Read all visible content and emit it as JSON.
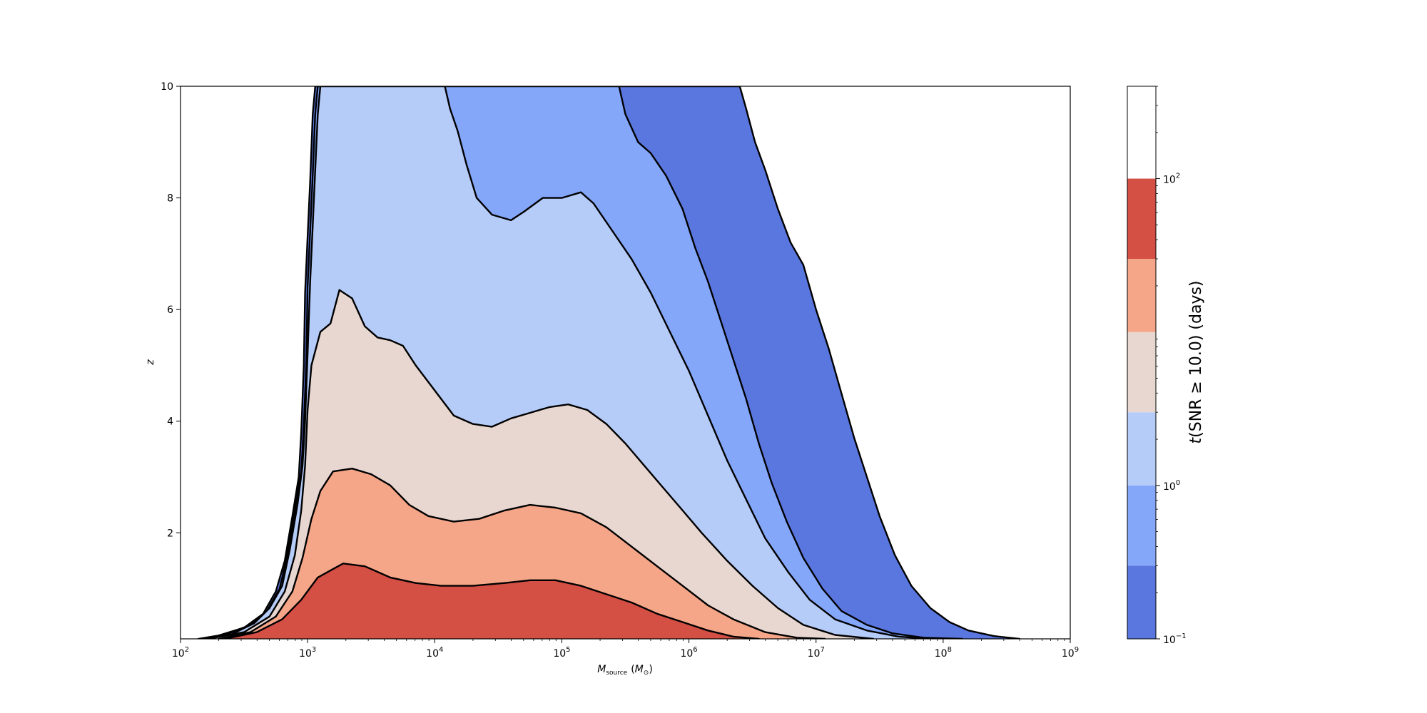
{
  "chart_data": {
    "type": "contourf",
    "xlabel_main": "M",
    "xlabel_sub": "source",
    "xlabel_unit_open": "(",
    "xlabel_unit": "M",
    "xlabel_unit_sub": "⊙",
    "xlabel_unit_close": ")",
    "ylabel": "z",
    "x_scale": "log",
    "xlim": [
      100,
      1000000000
    ],
    "ylim": [
      0.1,
      10
    ],
    "x_ticks": [
      {
        "value": 100,
        "base": "10",
        "exp": "2"
      },
      {
        "value": 1000,
        "base": "10",
        "exp": "3"
      },
      {
        "value": 10000,
        "base": "10",
        "exp": "4"
      },
      {
        "value": 100000,
        "base": "10",
        "exp": "5"
      },
      {
        "value": 1000000,
        "base": "10",
        "exp": "6"
      },
      {
        "value": 10000000,
        "base": "10",
        "exp": "7"
      },
      {
        "value": 100000000,
        "base": "10",
        "exp": "8"
      },
      {
        "value": 1000000000,
        "base": "10",
        "exp": "9"
      }
    ],
    "y_ticks": [
      {
        "value": 2,
        "label": "2"
      },
      {
        "value": 4,
        "label": "4"
      },
      {
        "value": 6,
        "label": "6"
      },
      {
        "value": 8,
        "label": "8"
      },
      {
        "value": 10,
        "label": "10"
      }
    ],
    "colorbar": {
      "label": "t(SNR ≥ 10.0)  (days)",
      "scale": "log",
      "range": [
        0.1,
        400
      ],
      "levels": [
        0.1,
        0.3,
        1,
        3,
        10,
        30,
        100,
        400
      ],
      "colors": [
        "#5a77e0",
        "#84a7fa",
        "#b5cbf8",
        "#e8d7d0",
        "#f5a688",
        "#d44f44"
      ],
      "tick_labels": [
        {
          "value": 0.1,
          "base": "10",
          "exp": "−1"
        },
        {
          "value": 1,
          "base": "10",
          "exp": "0"
        },
        {
          "value": 100,
          "base": "10",
          "exp": "2"
        }
      ]
    },
    "contour_regions": [
      {
        "name": "t ≥ 0.1 days",
        "color": "#5a77e0",
        "boundary_log10M_z": [
          [
            2.14,
            0.1
          ],
          [
            2.3,
            0.16
          ],
          [
            2.5,
            0.3
          ],
          [
            2.65,
            0.55
          ],
          [
            2.75,
            0.95
          ],
          [
            2.82,
            1.5
          ],
          [
            2.88,
            2.3
          ],
          [
            2.93,
            3.0
          ],
          [
            2.95,
            3.8
          ],
          [
            2.97,
            5.0
          ],
          [
            2.98,
            6.3
          ],
          [
            3.0,
            7.3
          ],
          [
            3.02,
            8.3
          ],
          [
            3.04,
            9.5
          ],
          [
            3.06,
            10
          ],
          [
            6.4,
            10
          ],
          [
            6.45,
            9.6
          ],
          [
            6.52,
            9.0
          ],
          [
            6.6,
            8.5
          ],
          [
            6.7,
            7.8
          ],
          [
            6.8,
            7.2
          ],
          [
            6.9,
            6.8
          ],
          [
            7.0,
            6.0
          ],
          [
            7.1,
            5.3
          ],
          [
            7.2,
            4.5
          ],
          [
            7.3,
            3.7
          ],
          [
            7.4,
            3.0
          ],
          [
            7.5,
            2.3
          ],
          [
            7.62,
            1.6
          ],
          [
            7.75,
            1.05
          ],
          [
            7.9,
            0.65
          ],
          [
            8.05,
            0.4
          ],
          [
            8.2,
            0.25
          ],
          [
            8.4,
            0.15
          ],
          [
            8.6,
            0.1
          ]
        ]
      },
      {
        "name": "t ≥ 0.3 days",
        "color": "#84a7fa",
        "boundary_log10M_z": [
          [
            2.16,
            0.1
          ],
          [
            2.35,
            0.17
          ],
          [
            2.55,
            0.35
          ],
          [
            2.68,
            0.6
          ],
          [
            2.78,
            1.0
          ],
          [
            2.84,
            1.6
          ],
          [
            2.9,
            2.4
          ],
          [
            2.95,
            3.1
          ],
          [
            2.97,
            3.9
          ],
          [
            2.99,
            5.1
          ],
          [
            3.0,
            6.4
          ],
          [
            3.02,
            7.4
          ],
          [
            3.04,
            8.4
          ],
          [
            3.06,
            9.5
          ],
          [
            3.08,
            10
          ],
          [
            5.45,
            10
          ],
          [
            5.5,
            9.5
          ],
          [
            5.6,
            9.0
          ],
          [
            5.7,
            8.8
          ],
          [
            5.82,
            8.4
          ],
          [
            5.95,
            7.8
          ],
          [
            6.05,
            7.1
          ],
          [
            6.15,
            6.5
          ],
          [
            6.25,
            5.8
          ],
          [
            6.35,
            5.1
          ],
          [
            6.45,
            4.4
          ],
          [
            6.55,
            3.6
          ],
          [
            6.65,
            2.9
          ],
          [
            6.77,
            2.2
          ],
          [
            6.9,
            1.55
          ],
          [
            7.05,
            1.0
          ],
          [
            7.2,
            0.6
          ],
          [
            7.4,
            0.35
          ],
          [
            7.6,
            0.2
          ],
          [
            7.85,
            0.12
          ],
          [
            8.15,
            0.1
          ]
        ]
      },
      {
        "name": "t ≥ 1 days",
        "color": "#b5cbf8",
        "boundary_log10M_z": [
          [
            2.18,
            0.1
          ],
          [
            2.4,
            0.18
          ],
          [
            2.58,
            0.38
          ],
          [
            2.7,
            0.65
          ],
          [
            2.8,
            1.05
          ],
          [
            2.86,
            1.7
          ],
          [
            2.92,
            2.5
          ],
          [
            2.96,
            3.2
          ],
          [
            2.98,
            4.0
          ],
          [
            3.0,
            5.2
          ],
          [
            3.02,
            6.5
          ],
          [
            3.04,
            7.5
          ],
          [
            3.06,
            8.5
          ],
          [
            3.08,
            9.5
          ],
          [
            3.1,
            10
          ],
          [
            4.08,
            10
          ],
          [
            4.12,
            9.6
          ],
          [
            4.18,
            9.2
          ],
          [
            4.25,
            8.6
          ],
          [
            4.33,
            8.0
          ],
          [
            4.45,
            7.7
          ],
          [
            4.6,
            7.6
          ],
          [
            4.7,
            7.75
          ],
          [
            4.85,
            8.0
          ],
          [
            5.0,
            8.0
          ],
          [
            5.15,
            8.1
          ],
          [
            5.25,
            7.9
          ],
          [
            5.4,
            7.4
          ],
          [
            5.55,
            6.9
          ],
          [
            5.7,
            6.3
          ],
          [
            5.85,
            5.6
          ],
          [
            6.0,
            4.9
          ],
          [
            6.15,
            4.1
          ],
          [
            6.3,
            3.3
          ],
          [
            6.45,
            2.6
          ],
          [
            6.6,
            1.9
          ],
          [
            6.78,
            1.3
          ],
          [
            6.95,
            0.8
          ],
          [
            7.15,
            0.45
          ],
          [
            7.4,
            0.25
          ],
          [
            7.65,
            0.14
          ],
          [
            7.9,
            0.1
          ]
        ]
      },
      {
        "name": "t ≥ 3 days",
        "color": "#e8d7d0",
        "boundary_log10M_z": [
          [
            2.22,
            0.1
          ],
          [
            2.5,
            0.22
          ],
          [
            2.7,
            0.5
          ],
          [
            2.82,
            0.95
          ],
          [
            2.9,
            1.6
          ],
          [
            2.95,
            2.4
          ],
          [
            2.98,
            3.2
          ],
          [
            3.0,
            4.2
          ],
          [
            3.03,
            5.0
          ],
          [
            3.1,
            5.6
          ],
          [
            3.18,
            5.75
          ],
          [
            3.25,
            6.35
          ],
          [
            3.35,
            6.2
          ],
          [
            3.45,
            5.7
          ],
          [
            3.55,
            5.5
          ],
          [
            3.65,
            5.45
          ],
          [
            3.75,
            5.35
          ],
          [
            3.85,
            5.0
          ],
          [
            3.95,
            4.7
          ],
          [
            4.05,
            4.4
          ],
          [
            4.15,
            4.1
          ],
          [
            4.3,
            3.95
          ],
          [
            4.45,
            3.9
          ],
          [
            4.6,
            4.05
          ],
          [
            4.75,
            4.15
          ],
          [
            4.9,
            4.25
          ],
          [
            5.05,
            4.3
          ],
          [
            5.2,
            4.2
          ],
          [
            5.35,
            3.95
          ],
          [
            5.5,
            3.6
          ],
          [
            5.65,
            3.2
          ],
          [
            5.8,
            2.8
          ],
          [
            5.95,
            2.4
          ],
          [
            6.1,
            2.0
          ],
          [
            6.3,
            1.5
          ],
          [
            6.5,
            1.05
          ],
          [
            6.7,
            0.65
          ],
          [
            6.9,
            0.35
          ],
          [
            7.15,
            0.17
          ],
          [
            7.45,
            0.1
          ]
        ]
      },
      {
        "name": "t ≥ 10 days",
        "color": "#f5a688",
        "boundary_log10M_z": [
          [
            2.3,
            0.1
          ],
          [
            2.55,
            0.22
          ],
          [
            2.75,
            0.5
          ],
          [
            2.88,
            0.95
          ],
          [
            2.96,
            1.55
          ],
          [
            3.03,
            2.25
          ],
          [
            3.1,
            2.75
          ],
          [
            3.2,
            3.1
          ],
          [
            3.35,
            3.15
          ],
          [
            3.5,
            3.05
          ],
          [
            3.65,
            2.85
          ],
          [
            3.8,
            2.5
          ],
          [
            3.95,
            2.3
          ],
          [
            4.15,
            2.2
          ],
          [
            4.35,
            2.25
          ],
          [
            4.55,
            2.4
          ],
          [
            4.75,
            2.5
          ],
          [
            4.95,
            2.45
          ],
          [
            5.15,
            2.35
          ],
          [
            5.35,
            2.1
          ],
          [
            5.55,
            1.75
          ],
          [
            5.75,
            1.4
          ],
          [
            5.95,
            1.05
          ],
          [
            6.15,
            0.7
          ],
          [
            6.35,
            0.45
          ],
          [
            6.6,
            0.22
          ],
          [
            6.85,
            0.12
          ],
          [
            7.07,
            0.1
          ]
        ]
      },
      {
        "name": "t ≥ 100 days",
        "color": "#d44f44",
        "boundary_log10M_z": [
          [
            2.35,
            0.1
          ],
          [
            2.6,
            0.22
          ],
          [
            2.8,
            0.45
          ],
          [
            2.95,
            0.8
          ],
          [
            3.08,
            1.2
          ],
          [
            3.2,
            1.35
          ],
          [
            3.28,
            1.45
          ],
          [
            3.45,
            1.4
          ],
          [
            3.65,
            1.2
          ],
          [
            3.85,
            1.1
          ],
          [
            4.05,
            1.05
          ],
          [
            4.3,
            1.05
          ],
          [
            4.55,
            1.1
          ],
          [
            4.75,
            1.15
          ],
          [
            4.95,
            1.15
          ],
          [
            5.15,
            1.05
          ],
          [
            5.35,
            0.9
          ],
          [
            5.55,
            0.75
          ],
          [
            5.75,
            0.55
          ],
          [
            5.95,
            0.4
          ],
          [
            6.15,
            0.25
          ],
          [
            6.35,
            0.14
          ],
          [
            6.55,
            0.1
          ]
        ]
      }
    ]
  }
}
